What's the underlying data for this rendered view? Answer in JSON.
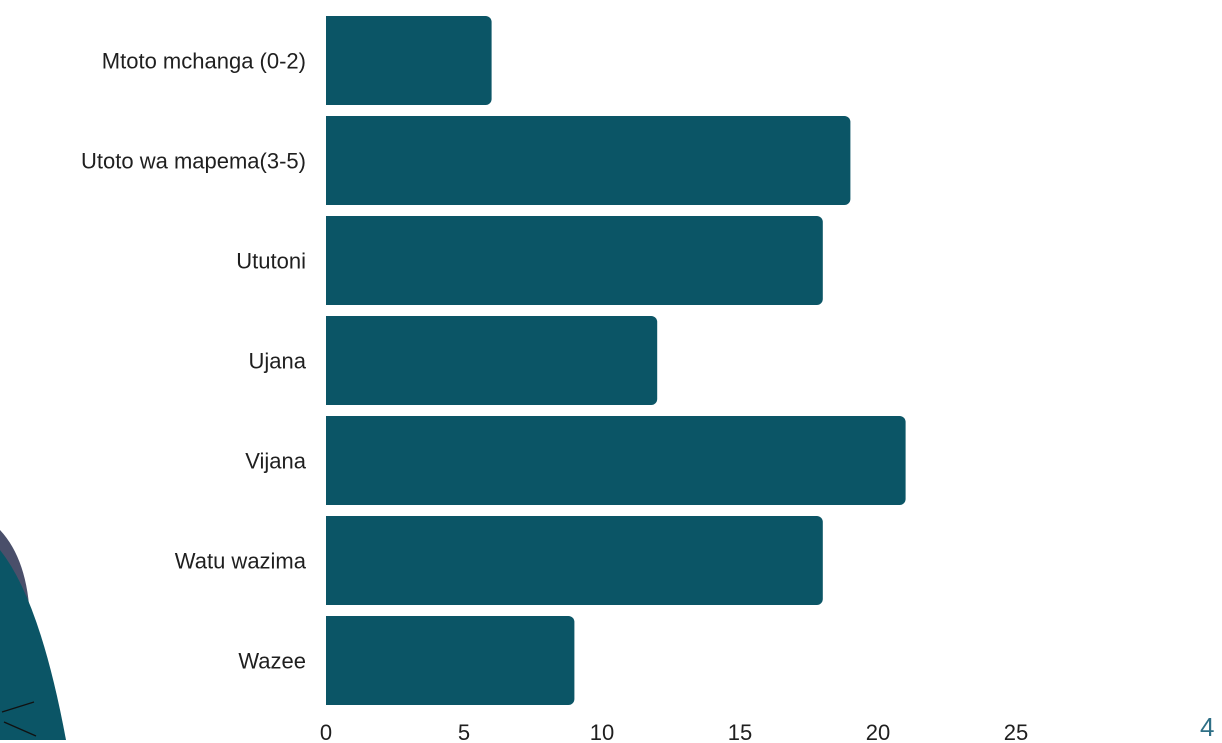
{
  "chart_data": {
    "type": "bar",
    "orientation": "horizontal",
    "categories": [
      "Mtoto mchanga (0-2)",
      "Utoto wa mapema(3-5)",
      "Ututoni",
      "Ujana",
      "Vijana",
      "Watu wazima",
      "Wazee"
    ],
    "values": [
      6,
      19,
      18,
      12,
      21,
      18,
      9
    ],
    "xlim": [
      0,
      25
    ],
    "xticks": [
      0,
      5,
      10,
      15,
      20,
      25
    ],
    "grid": false,
    "bar_color": "#0b5566"
  },
  "slide": {
    "page_number": "4",
    "page_number_color": "#2e6f86",
    "decoration_colors": [
      "#0b5566",
      "#4a4f6a"
    ]
  }
}
